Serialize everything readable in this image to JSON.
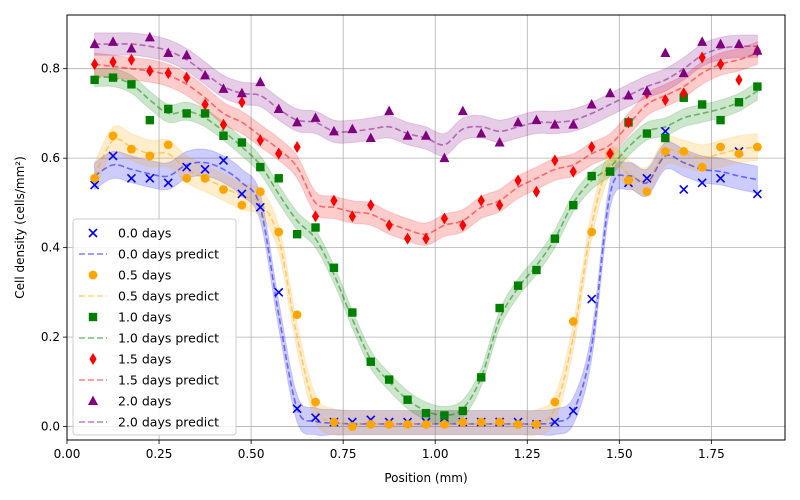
{
  "chart_data": {
    "type": "scatter",
    "title": "",
    "xlabel": "Position (mm)",
    "ylabel": "Cell density (cells/mm²)",
    "xlim": [
      0.0,
      1.95
    ],
    "ylim": [
      -0.03,
      0.92
    ],
    "xticks": [
      "0.00",
      "0.25",
      "0.50",
      "0.75",
      "1.00",
      "1.25",
      "1.50",
      "1.75"
    ],
    "xtick_values": [
      0.0,
      0.25,
      0.5,
      0.75,
      1.0,
      1.25,
      1.5,
      1.75
    ],
    "yticks": [
      "0.0",
      "0.2",
      "0.4",
      "0.6",
      "0.8"
    ],
    "ytick_values": [
      0.0,
      0.2,
      0.4,
      0.6,
      0.8
    ],
    "grid": true,
    "legend_position": "center-left",
    "x": [
      0.075,
      0.125,
      0.175,
      0.225,
      0.275,
      0.325,
      0.375,
      0.425,
      0.475,
      0.525,
      0.575,
      0.625,
      0.675,
      0.725,
      0.775,
      0.825,
      0.875,
      0.925,
      0.975,
      1.025,
      1.075,
      1.125,
      1.175,
      1.225,
      1.275,
      1.325,
      1.375,
      1.425,
      1.475,
      1.525,
      1.575,
      1.625,
      1.675,
      1.725,
      1.775,
      1.825,
      1.875
    ],
    "series": [
      {
        "name": "0.0 days",
        "predict_name": "0.0 days predict",
        "color": "#0000ff",
        "marker": "x",
        "values": [
          0.54,
          0.605,
          0.555,
          0.555,
          0.545,
          0.58,
          0.575,
          0.595,
          0.52,
          0.49,
          0.3,
          0.04,
          0.02,
          0.01,
          0.01,
          0.015,
          0.01,
          0.01,
          0.01,
          0.02,
          0.01,
          0.01,
          0.01,
          0.01,
          0.005,
          0.01,
          0.035,
          0.285,
          0.57,
          0.545,
          0.555,
          0.66,
          0.53,
          0.545,
          0.555,
          0.615,
          0.52
        ],
        "predict": [
          0.56,
          0.585,
          0.575,
          0.565,
          0.56,
          0.585,
          0.59,
          0.575,
          0.545,
          0.49,
          0.25,
          0.04,
          0.012,
          0.008,
          0.006,
          0.006,
          0.006,
          0.006,
          0.006,
          0.006,
          0.006,
          0.006,
          0.006,
          0.006,
          0.006,
          0.01,
          0.035,
          0.18,
          0.52,
          0.56,
          0.545,
          0.605,
          0.59,
          0.575,
          0.57,
          0.56,
          0.552
        ],
        "band": 0.03
      },
      {
        "name": "0.5 days",
        "predict_name": "0.5 days predict",
        "color": "#ffa500",
        "marker": "o",
        "values": [
          0.555,
          0.65,
          0.62,
          0.605,
          0.63,
          0.555,
          0.555,
          0.53,
          0.495,
          0.525,
          0.435,
          0.25,
          0.055,
          0.01,
          0.0,
          0.005,
          0.005,
          0.005,
          0.005,
          0.005,
          0.01,
          0.01,
          0.01,
          0.005,
          0.005,
          0.055,
          0.235,
          0.435,
          0.61,
          0.55,
          0.525,
          0.615,
          0.615,
          0.58,
          0.625,
          0.61,
          0.625
        ],
        "predict": [
          0.56,
          0.64,
          0.625,
          0.61,
          0.61,
          0.575,
          0.555,
          0.535,
          0.515,
          0.5,
          0.42,
          0.2,
          0.04,
          0.01,
          0.006,
          0.006,
          0.006,
          0.006,
          0.006,
          0.006,
          0.006,
          0.006,
          0.006,
          0.006,
          0.008,
          0.04,
          0.2,
          0.45,
          0.59,
          0.565,
          0.55,
          0.615,
          0.61,
          0.6,
          0.61,
          0.62,
          0.625
        ],
        "band": 0.03
      },
      {
        "name": "1.0 days",
        "predict_name": "1.0 days predict",
        "color": "#008000",
        "marker": "s",
        "values": [
          0.775,
          0.78,
          0.765,
          0.685,
          0.71,
          0.7,
          0.7,
          0.65,
          0.635,
          0.58,
          0.555,
          0.43,
          0.445,
          0.355,
          0.255,
          0.145,
          0.105,
          0.06,
          0.03,
          0.025,
          0.035,
          0.11,
          0.265,
          0.315,
          0.35,
          0.42,
          0.495,
          0.56,
          0.57,
          0.68,
          0.655,
          0.645,
          0.735,
          0.72,
          0.685,
          0.725,
          0.76
        ],
        "predict": [
          0.78,
          0.78,
          0.765,
          0.73,
          0.7,
          0.705,
          0.69,
          0.66,
          0.625,
          0.585,
          0.52,
          0.46,
          0.42,
          0.34,
          0.24,
          0.15,
          0.1,
          0.06,
          0.035,
          0.025,
          0.04,
          0.11,
          0.24,
          0.31,
          0.36,
          0.42,
          0.5,
          0.55,
          0.58,
          0.625,
          0.66,
          0.67,
          0.69,
          0.7,
          0.71,
          0.725,
          0.75
        ],
        "band": 0.02
      },
      {
        "name": "1.5 days",
        "predict_name": "1.5 days predict",
        "color": "#ff0000",
        "marker": "d",
        "values": [
          0.81,
          0.815,
          0.82,
          0.795,
          0.79,
          0.78,
          0.72,
          0.675,
          0.725,
          0.64,
          0.61,
          0.625,
          0.47,
          0.505,
          0.47,
          0.495,
          0.45,
          0.42,
          0.42,
          0.465,
          0.45,
          0.505,
          0.495,
          0.55,
          0.525,
          0.595,
          0.57,
          0.625,
          0.61,
          0.68,
          0.745,
          0.73,
          0.745,
          0.825,
          0.81,
          0.775,
          0.84
        ],
        "predict": [
          0.81,
          0.805,
          0.8,
          0.795,
          0.785,
          0.765,
          0.735,
          0.7,
          0.68,
          0.65,
          0.62,
          0.58,
          0.5,
          0.49,
          0.48,
          0.475,
          0.455,
          0.44,
          0.43,
          0.45,
          0.46,
          0.49,
          0.505,
          0.535,
          0.555,
          0.575,
          0.585,
          0.61,
          0.63,
          0.675,
          0.72,
          0.74,
          0.76,
          0.79,
          0.81,
          0.82,
          0.835
        ],
        "band": 0.025
      },
      {
        "name": "2.0 days",
        "predict_name": "2.0 days predict",
        "color": "#800080",
        "marker": "^",
        "values": [
          0.855,
          0.86,
          0.845,
          0.87,
          0.835,
          0.83,
          0.785,
          0.755,
          0.745,
          0.77,
          0.71,
          0.68,
          0.69,
          0.66,
          0.665,
          0.645,
          0.705,
          0.65,
          0.65,
          0.6,
          0.705,
          0.655,
          0.635,
          0.68,
          0.685,
          0.675,
          0.675,
          0.72,
          0.745,
          0.74,
          0.75,
          0.835,
          0.79,
          0.86,
          0.855,
          0.855,
          0.84
        ],
        "predict": [
          0.855,
          0.855,
          0.855,
          0.85,
          0.84,
          0.82,
          0.79,
          0.76,
          0.745,
          0.74,
          0.71,
          0.685,
          0.68,
          0.66,
          0.66,
          0.665,
          0.67,
          0.655,
          0.645,
          0.63,
          0.665,
          0.67,
          0.66,
          0.67,
          0.68,
          0.68,
          0.685,
          0.7,
          0.72,
          0.74,
          0.76,
          0.775,
          0.8,
          0.83,
          0.845,
          0.85,
          0.85
        ],
        "band": 0.025
      }
    ]
  }
}
